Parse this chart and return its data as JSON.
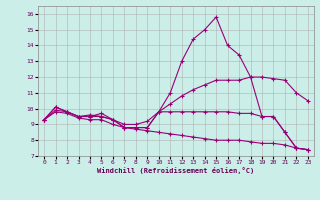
{
  "xlabel": "Windchill (Refroidissement éolien,°C)",
  "background_color": "#cceee8",
  "line_color": "#990077",
  "grid_color": "#aaaaaa",
  "xlim": [
    -0.5,
    23.5
  ],
  "ylim": [
    7.0,
    16.5
  ],
  "yticks": [
    7,
    8,
    9,
    10,
    11,
    12,
    13,
    14,
    15,
    16
  ],
  "xticks": [
    0,
    1,
    2,
    3,
    4,
    5,
    6,
    7,
    8,
    9,
    10,
    11,
    12,
    13,
    14,
    15,
    16,
    17,
    18,
    19,
    20,
    21,
    22,
    23
  ],
  "s1": [
    9.3,
    10.1,
    9.8,
    9.5,
    9.5,
    9.7,
    9.3,
    8.8,
    8.8,
    8.8,
    9.8,
    11.0,
    13.0,
    14.4,
    15.0,
    15.8,
    14.0,
    13.4,
    12.0,
    9.5,
    9.5,
    8.5,
    7.5,
    7.4
  ],
  "s2": [
    9.3,
    10.1,
    9.8,
    9.5,
    9.6,
    9.5,
    9.3,
    9.0,
    9.0,
    9.2,
    9.8,
    10.3,
    10.8,
    11.2,
    11.5,
    11.8,
    11.8,
    11.8,
    12.0,
    12.0,
    11.9,
    11.8,
    11.0,
    10.5
  ],
  "s3": [
    9.3,
    9.9,
    9.8,
    9.5,
    9.5,
    9.5,
    9.3,
    8.8,
    8.8,
    8.8,
    9.8,
    9.8,
    9.8,
    9.8,
    9.8,
    9.8,
    9.8,
    9.7,
    9.7,
    9.5,
    9.5,
    8.5,
    7.5,
    7.4
  ],
  "s4": [
    9.3,
    9.8,
    9.7,
    9.4,
    9.3,
    9.3,
    9.0,
    8.8,
    8.7,
    8.6,
    8.5,
    8.4,
    8.3,
    8.2,
    8.1,
    8.0,
    8.0,
    8.0,
    7.9,
    7.8,
    7.8,
    7.7,
    7.5,
    7.4
  ]
}
